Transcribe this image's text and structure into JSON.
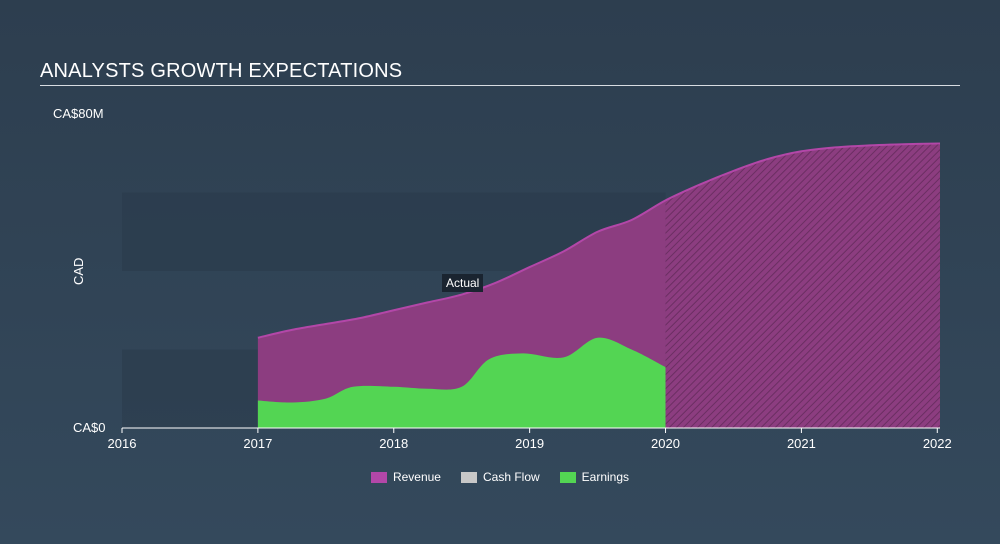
{
  "header": {
    "title": "ANALYSTS GROWTH EXPECTATIONS"
  },
  "colors": {
    "revenue": "#8c3d80",
    "revenue_line": "#b347a8",
    "cashflow": "#c8c8c8",
    "earnings": "#53d553",
    "axis": "#ffffff"
  },
  "chart_data": {
    "type": "area",
    "ylabel": "CAD",
    "y_tick_labels": [
      "CA$0",
      "CA$80M"
    ],
    "ylim": [
      0,
      80
    ],
    "xlim": [
      2016,
      2022.02
    ],
    "x_ticks": [
      2016,
      2017,
      2018,
      2019,
      2020,
      2021,
      2022
    ],
    "x_tick_labels": [
      "2016",
      "2017",
      "2018",
      "2019",
      "2020",
      "2021",
      "2022"
    ],
    "actual_end": 2020,
    "annotation": "Actual",
    "series": [
      {
        "name": "Revenue",
        "x": [
          2017,
          2017.25,
          2017.5,
          2017.75,
          2018,
          2018.25,
          2018.5,
          2018.75,
          2019,
          2019.25,
          2019.5,
          2019.75,
          2020,
          2020.25,
          2020.5,
          2020.75,
          2021,
          2021.25,
          2021.5,
          2021.75,
          2022.02
        ],
        "values": [
          23,
          25,
          26.5,
          28,
          30,
          32,
          34,
          37,
          41,
          45,
          50,
          53,
          58,
          62,
          65.5,
          68.5,
          70.5,
          71.5,
          72,
          72.3,
          72.5
        ]
      },
      {
        "name": "Cash Flow",
        "x": [],
        "values": []
      },
      {
        "name": "Earnings",
        "x": [
          2017,
          2017.25,
          2017.5,
          2017.7,
          2018,
          2018.25,
          2018.5,
          2018.7,
          2018.95,
          2019.25,
          2019.5,
          2019.75,
          2020
        ],
        "values": [
          7,
          6.5,
          7.5,
          10.5,
          10.5,
          10,
          10.5,
          17.5,
          19,
          18,
          23,
          20,
          15.5
        ]
      }
    ],
    "legend": [
      "Revenue",
      "Cash Flow",
      "Earnings"
    ],
    "legend_position": "bottom-center",
    "grid": true
  }
}
